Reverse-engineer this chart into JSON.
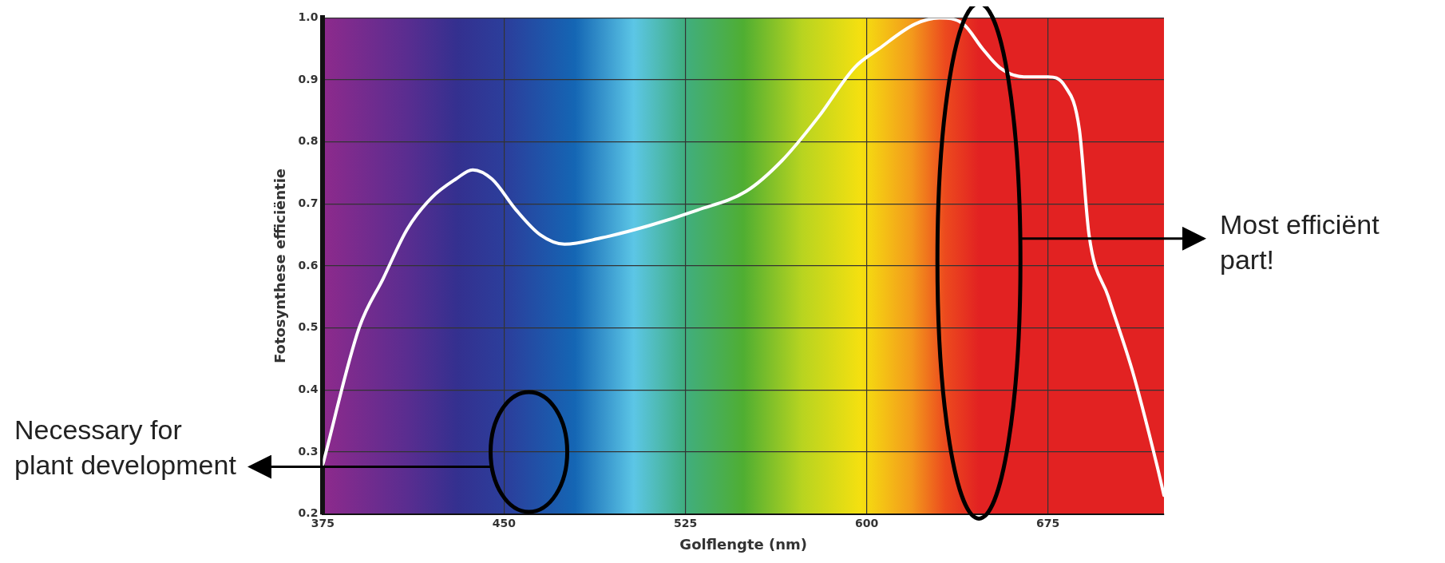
{
  "chart_data": {
    "type": "line",
    "xlabel": "Golflengte (nm)",
    "ylabel": "Fotosynthese efficiëntie",
    "x": [
      375,
      390,
      400,
      410,
      420,
      430,
      437,
      445,
      455,
      465,
      475,
      490,
      510,
      530,
      550,
      565,
      580,
      595,
      605,
      620,
      630,
      640,
      648,
      655,
      665,
      675,
      682,
      688,
      692,
      700,
      710,
      720,
      723
    ],
    "series": [
      {
        "color": "#ffffff",
        "values": [
          0.28,
          0.5,
          0.58,
          0.66,
          0.71,
          0.74,
          0.755,
          0.74,
          0.69,
          0.65,
          0.635,
          0.645,
          0.665,
          0.69,
          0.72,
          0.77,
          0.84,
          0.92,
          0.95,
          0.99,
          1.0,
          0.99,
          0.95,
          0.92,
          0.905,
          0.905,
          0.89,
          0.82,
          0.65,
          0.55,
          0.43,
          0.28,
          0.23
        ]
      }
    ],
    "xlim": [
      375,
      723
    ],
    "xticks": [
      375,
      450,
      525,
      600,
      675
    ],
    "ylim": [
      0.2,
      1.0
    ],
    "yticks": [
      {
        "value": 0.2,
        "label": "0.2"
      },
      {
        "value": 0.3,
        "label": "0.3"
      },
      {
        "value": 0.4,
        "label": "0.4"
      },
      {
        "value": 0.5,
        "label": "0.5"
      },
      {
        "value": 0.6,
        "label": "0.6"
      },
      {
        "value": 0.7,
        "label": "0.7"
      },
      {
        "value": 0.8,
        "label": "0.8"
      },
      {
        "value": 0.9,
        "label": "0.9"
      },
      {
        "value": 1.0,
        "label": "1.0"
      }
    ],
    "grid": true,
    "legend": false,
    "marker": "none",
    "line_style": "solid",
    "annotations": [
      "Necessary for plant development",
      "Most efficiënt part!"
    ]
  }
}
